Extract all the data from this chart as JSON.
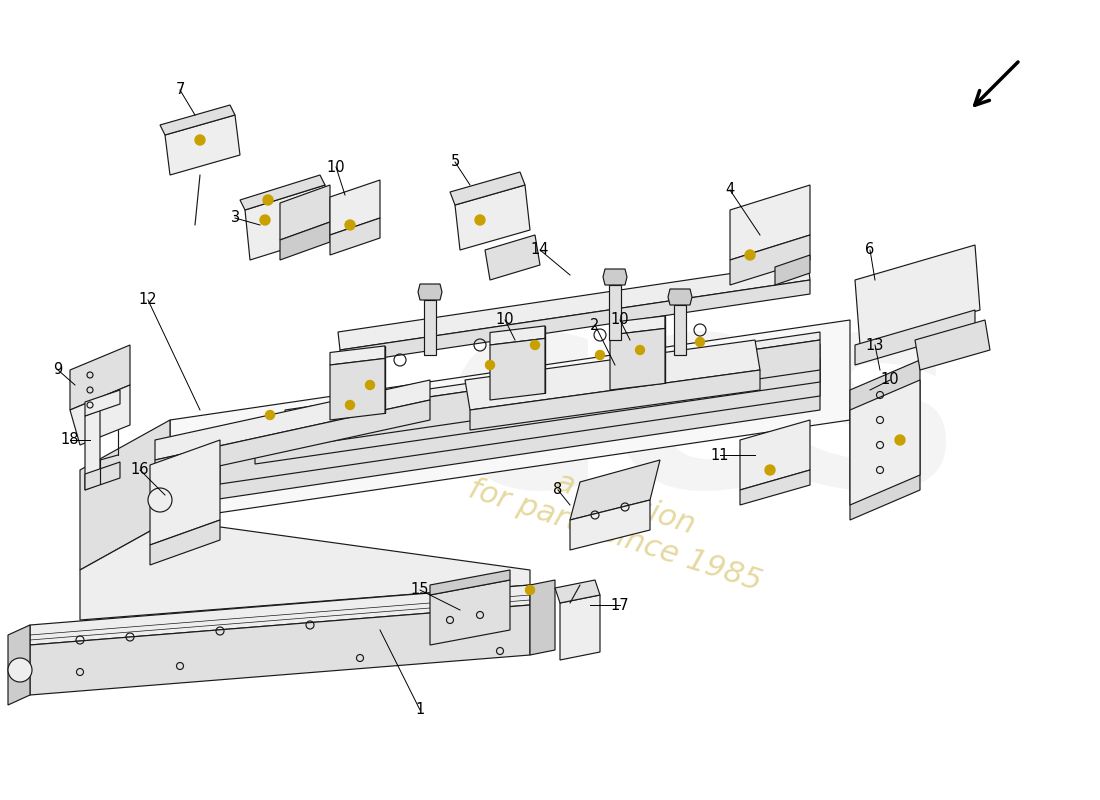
{
  "bg_color": "#ffffff",
  "line_color": "#1a1a1a",
  "fill_white": "#f8f8f8",
  "fill_light": "#eeeeee",
  "fill_mid": "#e0e0e0",
  "fill_dark": "#cccccc",
  "fill_darker": "#bbbbbb",
  "fill_side": "#d8d8d8",
  "fill_front": "#c8c8c8",
  "yellow_dot": "#c8a000",
  "watermark_gray": "#b0b0b0",
  "watermark_yellow": "#d4c060",
  "label_color": "#000000",
  "label_fontsize": 10.5,
  "lw": 0.85,
  "arrow_lw": 1.8
}
